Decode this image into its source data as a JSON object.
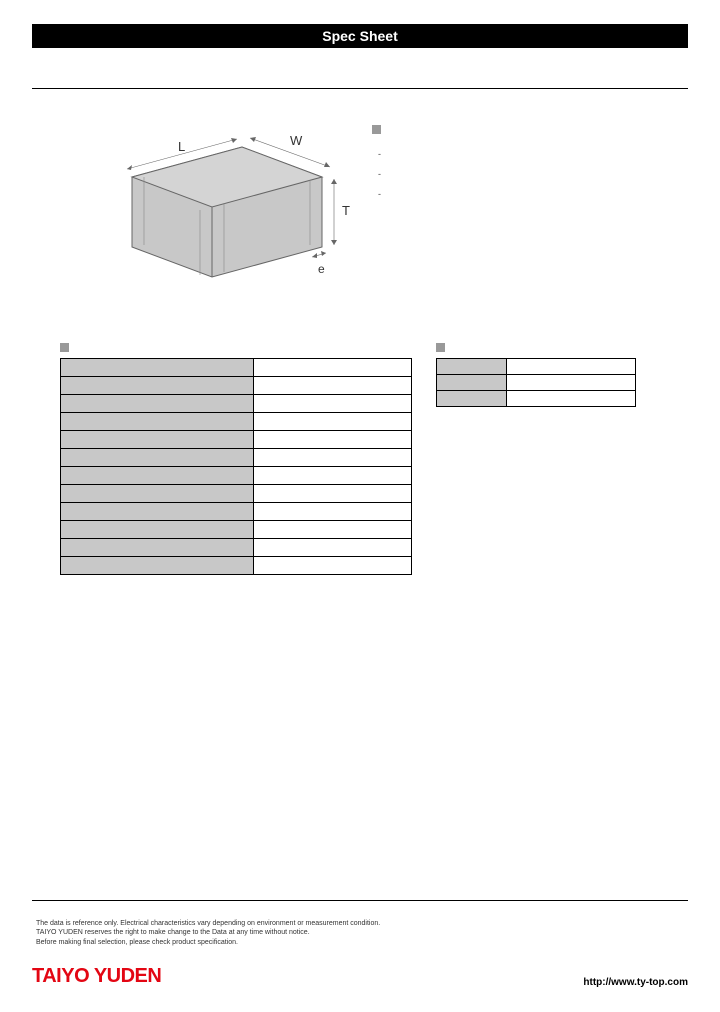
{
  "header": {
    "title": "Spec Sheet"
  },
  "diagram": {
    "labels": {
      "L": "L",
      "W": "W",
      "T": "T",
      "e": "e"
    },
    "fill_color": "#c8c8c8",
    "stroke_color": "#666666",
    "label_fontsize": 12
  },
  "features": {
    "items": [
      "-",
      "-",
      "-"
    ]
  },
  "spec_table": {
    "rows": [
      {
        "label": "",
        "value": ""
      },
      {
        "label": "",
        "value": ""
      },
      {
        "label": "",
        "value": ""
      },
      {
        "label": "",
        "value": ""
      },
      {
        "label": "",
        "value": ""
      },
      {
        "label": "",
        "value": ""
      },
      {
        "label": "",
        "value": ""
      },
      {
        "label": "",
        "value": ""
      },
      {
        "label": "",
        "value": ""
      },
      {
        "label": "",
        "value": ""
      },
      {
        "label": "",
        "value": ""
      },
      {
        "label": "",
        "value": ""
      }
    ],
    "label_bg": "#c8c8c8",
    "value_bg": "#ffffff",
    "border_color": "#000000"
  },
  "packaging_table": {
    "rows": [
      {
        "label": "",
        "value": ""
      },
      {
        "label": "",
        "value": ""
      },
      {
        "label": "",
        "value": ""
      }
    ],
    "label_bg": "#c8c8c8",
    "value_bg": "#ffffff"
  },
  "footer": {
    "disclaimer_lines": [
      "The data is reference only. Electrical characteristics vary depending on environment or measurement condition.",
      "TAIYO YUDEN reserves the right to make change to the Data at any time without notice.",
      "Before making final selection, please check product specification."
    ],
    "logo_text": "TAIYO YUDEN",
    "logo_color": "#e30613",
    "url": "http://www.ty-top.com"
  }
}
